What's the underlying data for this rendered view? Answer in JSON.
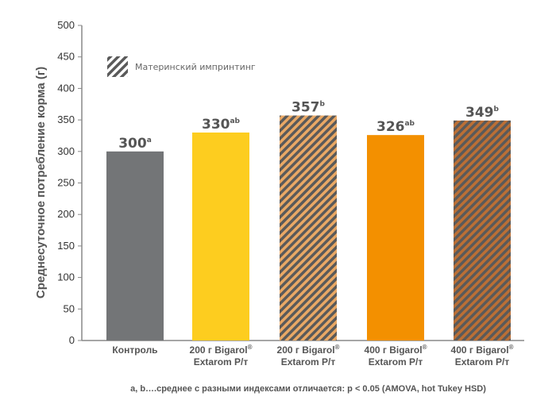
{
  "chart_data": {
    "type": "bar",
    "ylabel": "Среднесуточное потребление корма (г)",
    "ylim": [
      0,
      500
    ],
    "yticks": [
      0,
      50,
      100,
      150,
      200,
      250,
      300,
      350,
      400,
      450,
      500
    ],
    "categories": [
      [
        "Контроль"
      ],
      [
        "200 г Bigarol®",
        "Extarom Р/т"
      ],
      [
        "200 г Bigarol®",
        "Extarom Р/т"
      ],
      [
        "400 г Bigarol®",
        "Extarom Р/т"
      ],
      [
        "400 г Bigarol®",
        "Extarom Р/т"
      ]
    ],
    "values": [
      300,
      330,
      357,
      326,
      349
    ],
    "superscripts": [
      "a",
      "ab",
      "b",
      "ab",
      "b"
    ],
    "hatched": [
      false,
      false,
      true,
      false,
      true
    ],
    "colors": [
      "#737577",
      "#fdcd1f",
      "#e9a865",
      "#f39000",
      "#bb6f35"
    ],
    "hatch_color": "#5a5a5a",
    "legend": {
      "label": "Материнский импринтинг",
      "placement": "top-left"
    },
    "note": "a, b….среднее с разными индексами отличается: p < 0.05 (AMOVA, hot Tukey HSD)"
  }
}
